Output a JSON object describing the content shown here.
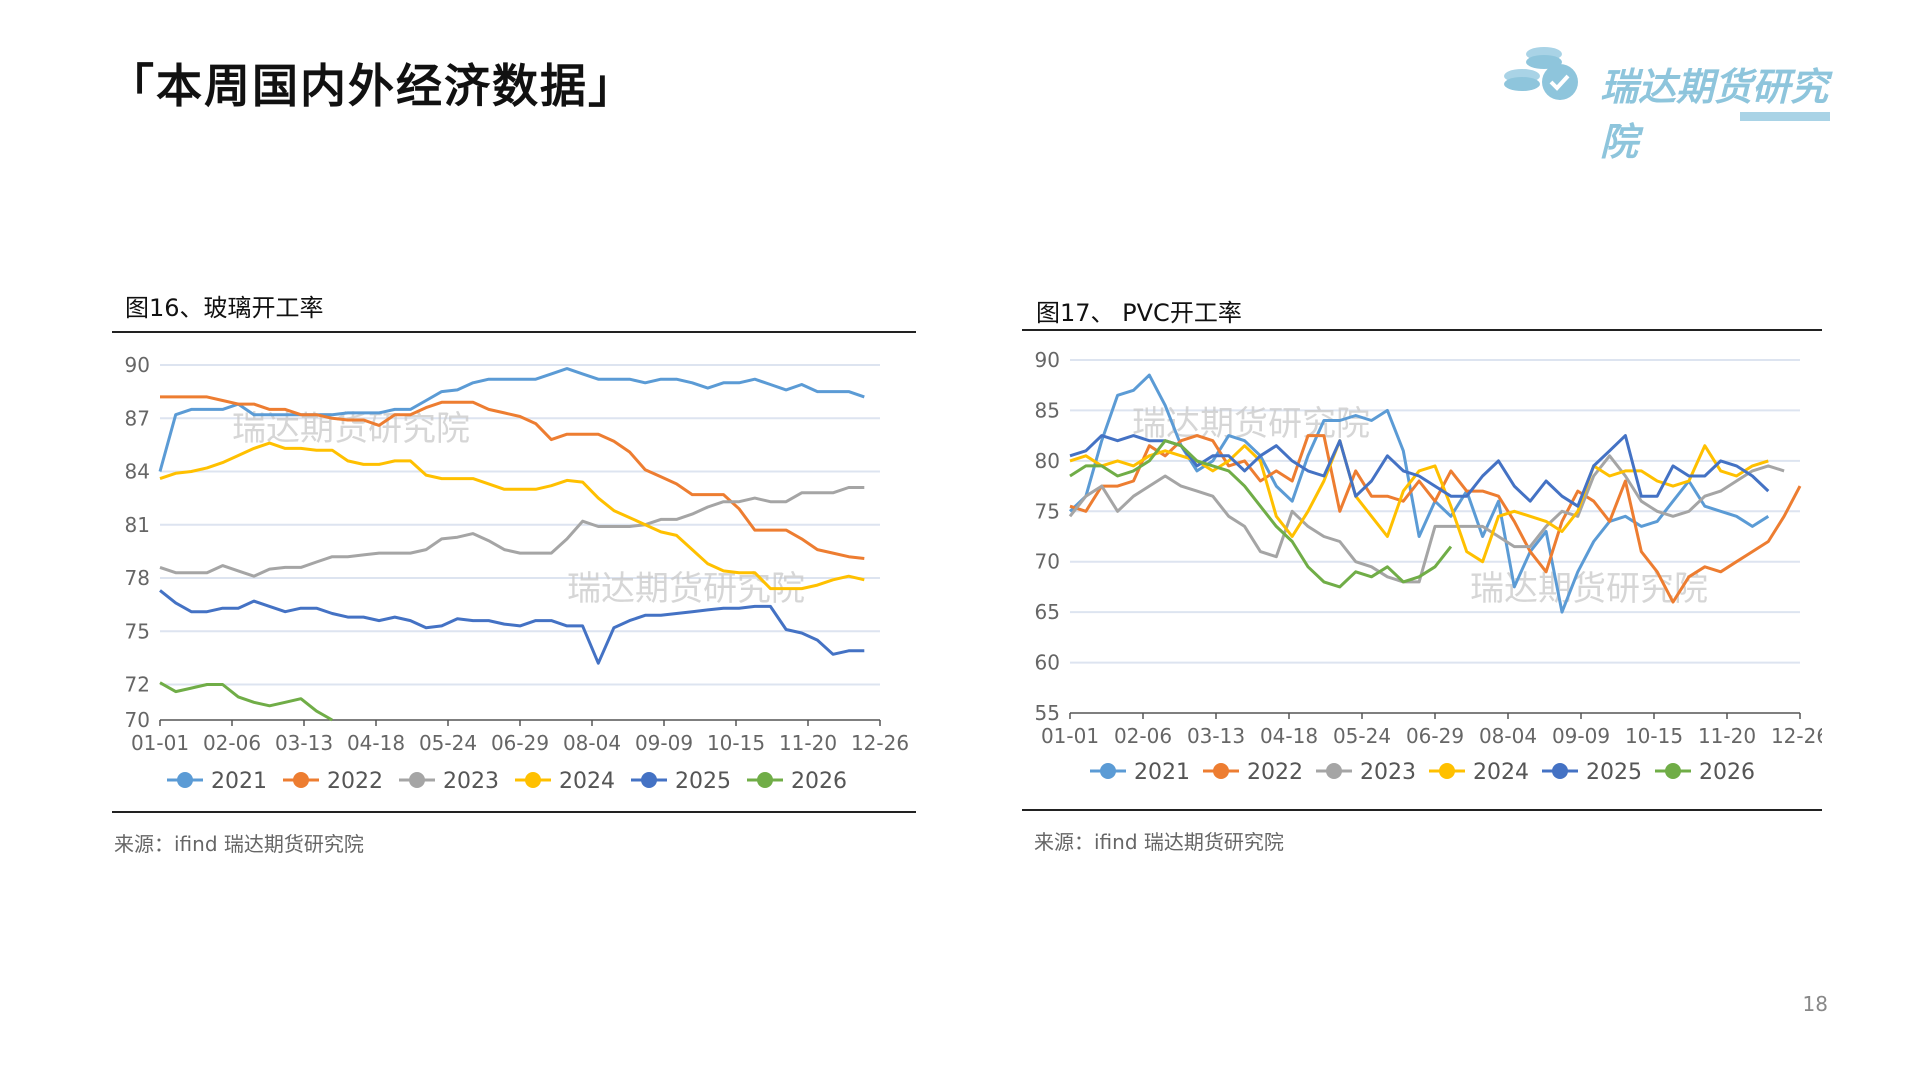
{
  "page": {
    "title": "「本周国内外经济数据」",
    "logo_text": "瑞达期货研究院",
    "page_number": "18"
  },
  "colors": {
    "2021": "#5b9bd5",
    "2022": "#ed7d31",
    "2023": "#a5a5a5",
    "2024": "#ffc000",
    "2025": "#4472c4",
    "2026": "#70ad47",
    "grid": "#dde4f0",
    "watermark": "#c8c8c8"
  },
  "charts": [
    {
      "title": "图16、玻璃开工率",
      "source": "来源：ifind    瑞达期货研究院",
      "watermark": "瑞达期货研究院"
    },
    {
      "title": "图17、 PVC开工率",
      "source": "来源：ifind    瑞达期货研究院",
      "watermark": "瑞达期货研究院"
    }
  ],
  "chart_data": [
    {
      "type": "line",
      "x_ticks": [
        "01-01",
        "02-06",
        "03-13",
        "04-18",
        "05-24",
        "06-29",
        "08-04",
        "09-09",
        "10-15",
        "11-20",
        "12-26"
      ],
      "y_ticks": [
        70,
        72,
        75,
        78,
        81,
        84,
        87,
        90
      ],
      "ylim": [
        70,
        90
      ],
      "legend_position": "bottom",
      "grid": true,
      "series": [
        {
          "name": "2021",
          "values": [
            84,
            87.2,
            87.5,
            87.5,
            87.5,
            87.8,
            87.2,
            87.2,
            87.2,
            87.2,
            87.2,
            87.2,
            87.3,
            87.3,
            87.3,
            87.5,
            87.5,
            88,
            88.5,
            88.6,
            89,
            89.2,
            89.2,
            89.2,
            89.2,
            89.5,
            89.8,
            89.5,
            89.2,
            89.2,
            89.2,
            89,
            89.2,
            89.2,
            89,
            88.7,
            89,
            89,
            89.2,
            88.9,
            88.6,
            88.9,
            88.5,
            88.5,
            88.5,
            88.2
          ]
        },
        {
          "name": "2022",
          "values": [
            88.2,
            88.2,
            88.2,
            88.2,
            88,
            87.8,
            87.8,
            87.5,
            87.5,
            87.2,
            87.2,
            87,
            86.9,
            86.9,
            86.6,
            87.2,
            87.2,
            87.6,
            87.9,
            87.9,
            87.9,
            87.5,
            87.3,
            87.1,
            86.7,
            85.8,
            86.1,
            86.1,
            86.1,
            85.7,
            85.1,
            84.1,
            83.7,
            83.3,
            82.7,
            82.7,
            82.7,
            81.9,
            80.7,
            80.7,
            80.7,
            80.2,
            79.6,
            79.4,
            79.2,
            79.1
          ]
        },
        {
          "name": "2023",
          "values": [
            78.6,
            78.3,
            78.3,
            78.3,
            78.7,
            78.4,
            78.1,
            78.5,
            78.6,
            78.6,
            78.9,
            79.2,
            79.2,
            79.3,
            79.4,
            79.4,
            79.4,
            79.6,
            80.2,
            80.3,
            80.5,
            80.1,
            79.6,
            79.4,
            79.4,
            79.4,
            80.2,
            81.2,
            80.9,
            80.9,
            80.9,
            81,
            81.3,
            81.3,
            81.6,
            82,
            82.3,
            82.3,
            82.5,
            82.3,
            82.3,
            82.8,
            82.8,
            82.8,
            83.1,
            83.1
          ]
        },
        {
          "name": "2024",
          "values": [
            83.6,
            83.9,
            84,
            84.2,
            84.5,
            84.9,
            85.3,
            85.6,
            85.3,
            85.3,
            85.2,
            85.2,
            84.6,
            84.4,
            84.4,
            84.6,
            84.6,
            83.8,
            83.6,
            83.6,
            83.6,
            83.3,
            83,
            83,
            83,
            83.2,
            83.5,
            83.4,
            82.5,
            81.8,
            81.4,
            81,
            80.6,
            80.4,
            79.6,
            78.8,
            78.4,
            78.3,
            78.3,
            77.4,
            77.4,
            77.4,
            77.6,
            77.9,
            78.1,
            77.9
          ]
        },
        {
          "name": "2025",
          "values": [
            77.3,
            76.6,
            76.1,
            76.1,
            76.3,
            76.3,
            76.7,
            76.4,
            76.1,
            76.3,
            76.3,
            76,
            75.8,
            75.8,
            75.6,
            75.8,
            75.6,
            75.2,
            75.3,
            75.7,
            75.6,
            75.6,
            75.4,
            75.3,
            75.6,
            75.6,
            75.3,
            75.3,
            73.2,
            75.2,
            75.6,
            75.9,
            75.9,
            76,
            76.1,
            76.2,
            76.3,
            76.3,
            76.4,
            76.4,
            75.1,
            74.9,
            74.5,
            73.7,
            73.9,
            73.9
          ]
        },
        {
          "name": "2026",
          "values": [
            72.1,
            71.6,
            71.8,
            72,
            72,
            71.3,
            71,
            70.8,
            71,
            71.2,
            70.5,
            70
          ]
        }
      ]
    },
    {
      "type": "line",
      "x_ticks": [
        "01-01",
        "02-06",
        "03-13",
        "04-18",
        "05-24",
        "06-29",
        "08-04",
        "09-09",
        "10-15",
        "11-20",
        "12-26"
      ],
      "y_ticks": [
        55,
        60,
        65,
        70,
        75,
        80,
        85,
        90
      ],
      "ylim": [
        55,
        90
      ],
      "legend_position": "bottom",
      "grid": true,
      "series": [
        {
          "name": "2021",
          "values": [
            75,
            76.5,
            82,
            86.5,
            87,
            88.5,
            85.5,
            81.5,
            79,
            80,
            82.5,
            82,
            80.5,
            77.5,
            76,
            80.5,
            84,
            84,
            84.5,
            84,
            85,
            81,
            72.5,
            76,
            74.5,
            77,
            72.5,
            76,
            67.5,
            71,
            73,
            65,
            69,
            72,
            74,
            74.5,
            73.5,
            74,
            76,
            78,
            75.5,
            75,
            74.5,
            73.5,
            74.5
          ]
        },
        {
          "name": "2022",
          "values": [
            75.5,
            75,
            77.5,
            77.5,
            78,
            81.5,
            80.5,
            82,
            82.5,
            82,
            79.5,
            80,
            78,
            79,
            78,
            82.5,
            82.5,
            75,
            79,
            76.5,
            76.5,
            76,
            78,
            76,
            79,
            77,
            77,
            76.5,
            74,
            71,
            69,
            74,
            77,
            76,
            74,
            78,
            71,
            69,
            66,
            68.5,
            69.5,
            69,
            70,
            71,
            72,
            74.5,
            77.5
          ]
        },
        {
          "name": "2023",
          "values": [
            74.5,
            76.5,
            77.5,
            75,
            76.5,
            77.5,
            78.5,
            77.5,
            77,
            76.5,
            74.5,
            73.5,
            71,
            70.5,
            75,
            73.5,
            72.5,
            72,
            70,
            69.5,
            68.5,
            68,
            68,
            73.5,
            73.5,
            73.5,
            73.5,
            72.5,
            71.5,
            71.5,
            73.5,
            75,
            74.5,
            78.5,
            80.5,
            78.5,
            76,
            75,
            74.5,
            75,
            76.5,
            77,
            78,
            79,
            79.5,
            79
          ]
        },
        {
          "name": "2024",
          "values": [
            80,
            80.5,
            79.5,
            80,
            79.5,
            80.5,
            81,
            80.5,
            80,
            79,
            80,
            81.5,
            80,
            74.5,
            72.5,
            75,
            78,
            82,
            76.5,
            74.5,
            72.5,
            77,
            79,
            79.5,
            75.5,
            71,
            70,
            74.5,
            75,
            74.5,
            74,
            73,
            75,
            79.5,
            78.5,
            79,
            79,
            78,
            77.5,
            78,
            81.5,
            79,
            78.5,
            79.5,
            80
          ]
        },
        {
          "name": "2025",
          "values": [
            80.5,
            81,
            82.5,
            82,
            82.5,
            82,
            82,
            81.5,
            79.5,
            80.5,
            80.5,
            79,
            80.5,
            81.5,
            80,
            79,
            78.5,
            82,
            76.5,
            78,
            80.5,
            79,
            78.5,
            77.5,
            76.5,
            76.5,
            78.5,
            80,
            77.5,
            76,
            78,
            76.5,
            75.5,
            79.5,
            81,
            82.5,
            76.5,
            76.5,
            79.5,
            78.5,
            78.5,
            80,
            79.5,
            78.5,
            77
          ]
        },
        {
          "name": "2026",
          "values": [
            78.5,
            79.5,
            79.5,
            78.5,
            79,
            80,
            82,
            81.5,
            80,
            79.5,
            79,
            77.5,
            75.5,
            73.5,
            72,
            69.5,
            68,
            67.5,
            69,
            68.5,
            69.5,
            68,
            68.5,
            69.5,
            71.5
          ]
        }
      ]
    }
  ]
}
